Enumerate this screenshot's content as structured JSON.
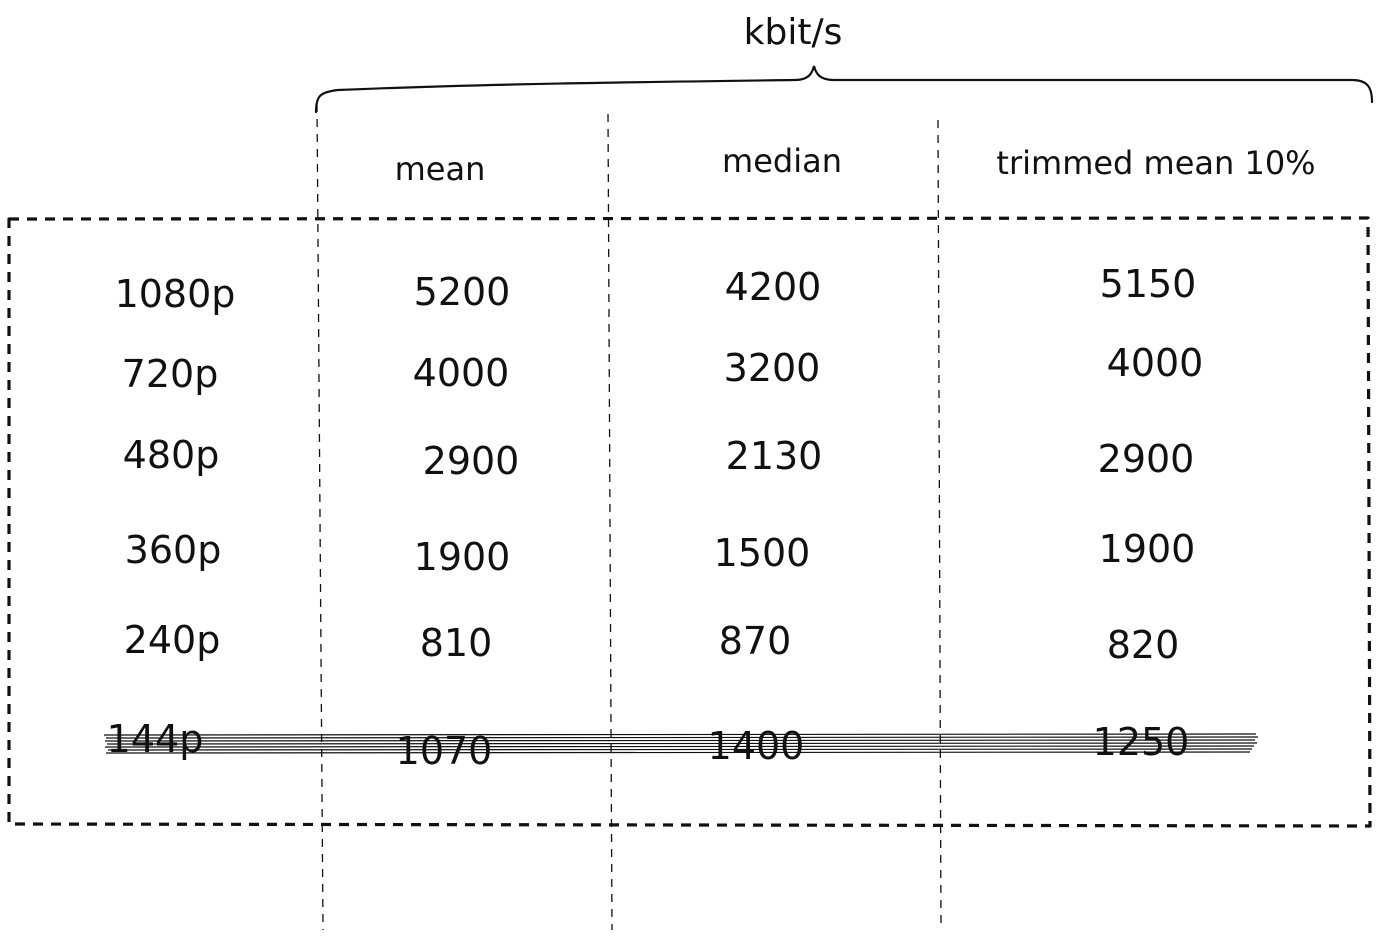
{
  "unit": "kbit/s",
  "columns": [
    "mean",
    "median",
    "trimmed mean 10%"
  ],
  "rows": [
    {
      "label": "1080p",
      "values": [
        "5200",
        "4200",
        "5150"
      ],
      "struck": false
    },
    {
      "label": "720p",
      "values": [
        "4000",
        "3200",
        "4000"
      ],
      "struck": false
    },
    {
      "label": "480p",
      "values": [
        "2900",
        "2130",
        "2900"
      ],
      "struck": false
    },
    {
      "label": "360p",
      "values": [
        "1900",
        "1500",
        "1900"
      ],
      "struck": false
    },
    {
      "label": "240p",
      "values": [
        "810",
        "870",
        "820"
      ],
      "struck": false
    },
    {
      "label": "144p",
      "values": [
        "1070",
        "1400",
        "1250"
      ],
      "struck": true
    }
  ],
  "colors": {
    "ink": "#111111",
    "background": "#ffffff"
  }
}
